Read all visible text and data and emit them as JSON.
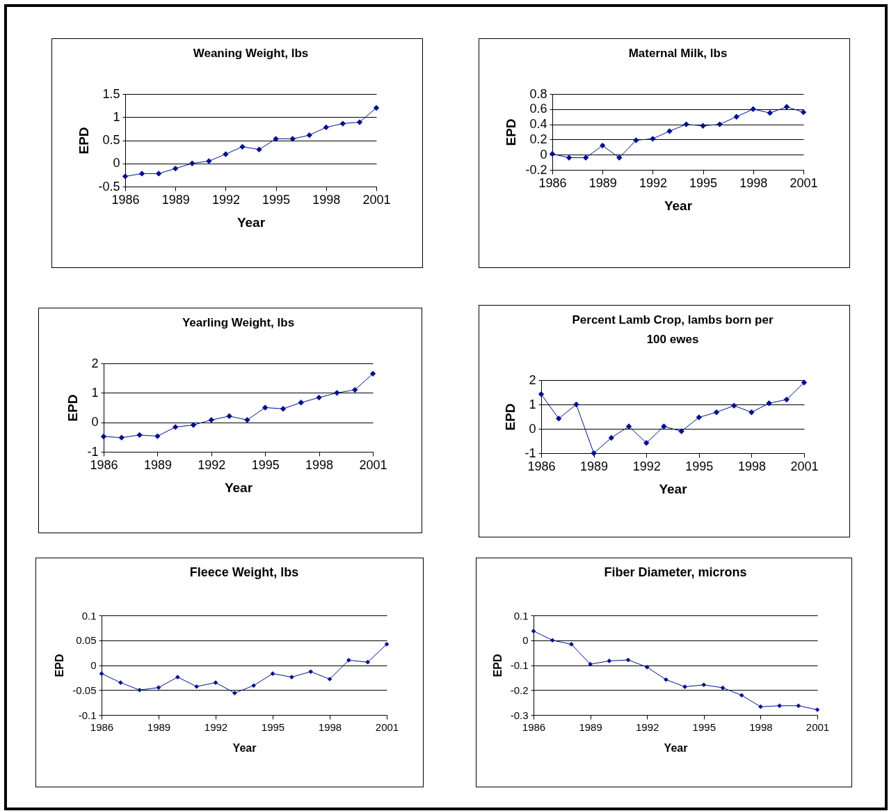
{
  "chart_data": [
    {
      "type": "line",
      "title": "Weaning Weight, lbs",
      "xlabel": "Year",
      "ylabel": "EPD",
      "x": [
        1986,
        1987,
        1988,
        1989,
        1990,
        1991,
        1992,
        1993,
        1994,
        1995,
        1996,
        1997,
        1998,
        1999,
        2000,
        2001
      ],
      "series": [
        {
          "color": "#000f8f",
          "values": [
            -0.28,
            -0.22,
            -0.22,
            -0.11,
            0,
            0.05,
            0.2,
            0.36,
            0.3,
            0.53,
            0.53,
            0.61,
            0.78,
            0.86,
            0.89,
            1.2
          ]
        }
      ],
      "xlim": [
        1986,
        2001
      ],
      "xticks": [
        1986,
        1989,
        1992,
        1995,
        1998,
        2001
      ],
      "ylim": [
        -0.5,
        1.5
      ],
      "yticks": [
        -0.5,
        0,
        0.5,
        1,
        1.5
      ],
      "grid": "y",
      "marker": "diamond",
      "line_style": "solid"
    },
    {
      "type": "line",
      "title": "Maternal Milk, lbs",
      "xlabel": "Year",
      "ylabel": "EPD",
      "x": [
        1986,
        1987,
        1988,
        1989,
        1990,
        1991,
        1992,
        1993,
        1994,
        1995,
        1996,
        1997,
        1998,
        1999,
        2000,
        2001
      ],
      "series": [
        {
          "color": "#000f8f",
          "values": [
            0.01,
            -0.04,
            -0.04,
            0.12,
            -0.04,
            0.19,
            0.21,
            0.31,
            0.4,
            0.38,
            0.4,
            0.5,
            0.6,
            0.55,
            0.63,
            0.56
          ]
        }
      ],
      "xlim": [
        1986,
        2001
      ],
      "xticks": [
        1986,
        1989,
        1992,
        1995,
        1998,
        2001
      ],
      "ylim": [
        -0.2,
        0.8
      ],
      "yticks": [
        -0.2,
        0,
        0.2,
        0.4,
        0.6,
        0.8
      ],
      "grid": "y",
      "marker": "diamond",
      "line_style": "solid"
    },
    {
      "type": "line",
      "title": "Yearling Weight, lbs",
      "xlabel": "Year",
      "ylabel": "EPD",
      "x": [
        1986,
        1987,
        1988,
        1989,
        1990,
        1991,
        1992,
        1993,
        1994,
        1995,
        1996,
        1997,
        1998,
        1999,
        2000,
        2001
      ],
      "series": [
        {
          "color": "#000f8f",
          "values": [
            -0.48,
            -0.52,
            -0.43,
            -0.47,
            -0.16,
            -0.09,
            0.08,
            0.21,
            0.08,
            0.5,
            0.46,
            0.67,
            0.84,
            1.0,
            1.1,
            1.65
          ]
        }
      ],
      "xlim": [
        1986,
        2001
      ],
      "xticks": [
        1986,
        1989,
        1992,
        1995,
        1998,
        2001
      ],
      "ylim": [
        -1,
        2
      ],
      "yticks": [
        -1,
        0,
        1,
        2
      ],
      "grid": "y",
      "marker": "diamond",
      "line_style": "solid"
    },
    {
      "type": "line",
      "title": "Percent Lamb Crop, lambs born per 100 ewes",
      "xlabel": "Year",
      "ylabel": "EPD",
      "x": [
        1986,
        1987,
        1988,
        1989,
        1990,
        1991,
        1992,
        1993,
        1994,
        1995,
        1996,
        1997,
        1998,
        1999,
        2000,
        2001
      ],
      "series": [
        {
          "color": "#000f8f",
          "values": [
            1.42,
            0.42,
            1.0,
            -1.0,
            -0.37,
            0.1,
            -0.58,
            0.1,
            -0.1,
            0.47,
            0.68,
            0.95,
            0.68,
            1.05,
            1.2,
            1.9
          ]
        }
      ],
      "xlim": [
        1986,
        2001
      ],
      "xticks": [
        1986,
        1989,
        1992,
        1995,
        1998,
        2001
      ],
      "ylim": [
        -1,
        2
      ],
      "yticks": [
        -1,
        0,
        1,
        2
      ],
      "grid": "y",
      "marker": "diamond",
      "line_style": "solid"
    },
    {
      "type": "line",
      "title": "Fleece Weight, lbs",
      "xlabel": "Year",
      "ylabel": "EPD",
      "x": [
        1986,
        1987,
        1988,
        1989,
        1990,
        1991,
        1992,
        1993,
        1994,
        1995,
        1996,
        1997,
        1998,
        1999,
        2000,
        2001
      ],
      "series": [
        {
          "color": "#000f8f",
          "values": [
            -0.017,
            -0.035,
            -0.05,
            -0.045,
            -0.024,
            -0.043,
            -0.035,
            -0.056,
            -0.041,
            -0.017,
            -0.024,
            -0.013,
            -0.028,
            0.01,
            0.006,
            0.042
          ]
        }
      ],
      "xlim": [
        1986,
        2001
      ],
      "xticks": [
        1986,
        1989,
        1992,
        1995,
        1998,
        2001
      ],
      "ylim": [
        -0.1,
        0.1
      ],
      "yticks": [
        -0.1,
        -0.05,
        0,
        0.05,
        0.1
      ],
      "grid": "y",
      "marker": "diamond",
      "line_style": "solid"
    },
    {
      "type": "line",
      "title": "Fiber Diameter, microns",
      "xlabel": "Year",
      "ylabel": "EPD",
      "x": [
        1986,
        1987,
        1988,
        1989,
        1990,
        1991,
        1992,
        1993,
        1994,
        1995,
        1996,
        1997,
        1998,
        1999,
        2000,
        2001
      ],
      "series": [
        {
          "color": "#000f8f",
          "values": [
            0.037,
            0,
            -0.016,
            -0.096,
            -0.083,
            -0.079,
            -0.108,
            -0.158,
            -0.187,
            -0.179,
            -0.191,
            -0.221,
            -0.267,
            -0.263,
            -0.263,
            -0.279
          ]
        }
      ],
      "xlim": [
        1986,
        2001
      ],
      "xticks": [
        1986,
        1989,
        1992,
        1995,
        1998,
        2001
      ],
      "ylim": [
        -0.3,
        0.1
      ],
      "yticks": [
        -0.3,
        -0.2,
        -0.1,
        0,
        0.1
      ],
      "grid": "y",
      "marker": "diamond",
      "line_style": "solid"
    }
  ]
}
